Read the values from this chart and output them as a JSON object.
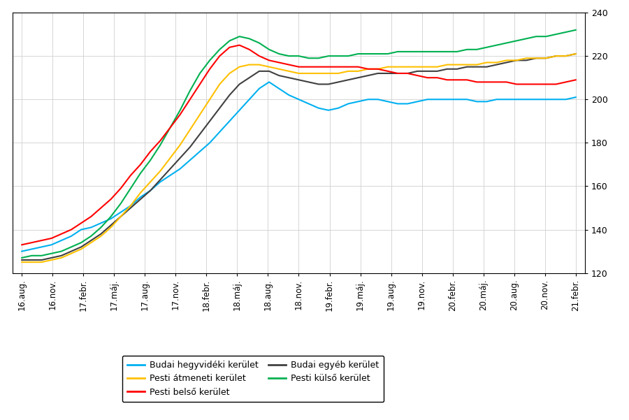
{
  "x_labels": [
    "16.aug.",
    "16.nov.",
    "17.febr.",
    "17.máj.",
    "17.aug.",
    "17.nov.",
    "18.febr.",
    "18.máj.",
    "18.aug.",
    "18.nov.",
    "19.febr.",
    "19.máj.",
    "19.aug.",
    "19.nov.",
    "20.febr.",
    "20.máj.",
    "20.aug.",
    "20.nov.",
    "21.febr."
  ],
  "ylim": [
    120,
    240
  ],
  "yticks": [
    120,
    140,
    160,
    180,
    200,
    220,
    240
  ],
  "series": {
    "Budai hegyvidéki kerület": {
      "color": "#00B0F0",
      "data": [
        130,
        131,
        132,
        133,
        135,
        137,
        140,
        141,
        143,
        145,
        148,
        151,
        155,
        158,
        162,
        165,
        168,
        172,
        176,
        180,
        185,
        190,
        195,
        200,
        205,
        208,
        205,
        202,
        200,
        198,
        196,
        195,
        196,
        198,
        199,
        200,
        200,
        199,
        198,
        198,
        199,
        200,
        200,
        200,
        200,
        200,
        199,
        199,
        200,
        200,
        200,
        200,
        200,
        200,
        200,
        200,
        201
      ]
    },
    "Budai egyéb kerület": {
      "color": "#404040",
      "data": [
        126,
        126,
        126,
        127,
        128,
        130,
        132,
        135,
        138,
        142,
        146,
        150,
        154,
        158,
        163,
        168,
        173,
        178,
        184,
        190,
        196,
        202,
        207,
        210,
        213,
        213,
        211,
        210,
        209,
        208,
        207,
        207,
        208,
        209,
        210,
        211,
        212,
        212,
        212,
        212,
        213,
        213,
        213,
        214,
        214,
        215,
        215,
        215,
        216,
        217,
        218,
        218,
        219,
        219,
        220,
        220,
        221
      ]
    },
    "Pesti átmeneti kerület": {
      "color": "#FFC000",
      "data": [
        125,
        125,
        125,
        126,
        127,
        129,
        131,
        134,
        137,
        141,
        146,
        151,
        157,
        162,
        167,
        173,
        179,
        186,
        193,
        200,
        207,
        212,
        215,
        216,
        216,
        215,
        214,
        213,
        212,
        212,
        212,
        212,
        212,
        213,
        213,
        214,
        214,
        215,
        215,
        215,
        215,
        215,
        215,
        216,
        216,
        216,
        216,
        217,
        217,
        218,
        218,
        219,
        219,
        219,
        220,
        220,
        221
      ]
    },
    "Pesti külső kerület": {
      "color": "#00B050",
      "data": [
        127,
        128,
        128,
        129,
        130,
        132,
        134,
        137,
        141,
        146,
        152,
        159,
        166,
        172,
        179,
        187,
        195,
        204,
        212,
        218,
        223,
        227,
        229,
        228,
        226,
        223,
        221,
        220,
        220,
        219,
        219,
        220,
        220,
        220,
        221,
        221,
        221,
        221,
        222,
        222,
        222,
        222,
        222,
        222,
        222,
        223,
        223,
        224,
        225,
        226,
        227,
        228,
        229,
        229,
        230,
        231,
        232
      ]
    },
    "Pesti belső kerület": {
      "color": "#FF0000",
      "data": [
        133,
        134,
        135,
        136,
        138,
        140,
        143,
        146,
        150,
        154,
        159,
        165,
        170,
        176,
        181,
        187,
        193,
        200,
        207,
        214,
        220,
        224,
        225,
        223,
        220,
        218,
        217,
        216,
        215,
        215,
        215,
        215,
        215,
        215,
        215,
        214,
        214,
        213,
        212,
        212,
        211,
        210,
        210,
        209,
        209,
        209,
        208,
        208,
        208,
        208,
        207,
        207,
        207,
        207,
        207,
        208,
        209
      ]
    }
  },
  "legend_layout": [
    [
      "Budai hegyvidéki kerület",
      "Budai egyéb kerület"
    ],
    [
      "Pesti átmeneti kerület",
      "Pesti külső kerület"
    ],
    [
      "Pesti belső kerület",
      null
    ]
  ],
  "background_color": "#FFFFFF",
  "grid_color": "#D0D0D0",
  "n_points": 57,
  "n_ticks": 19
}
